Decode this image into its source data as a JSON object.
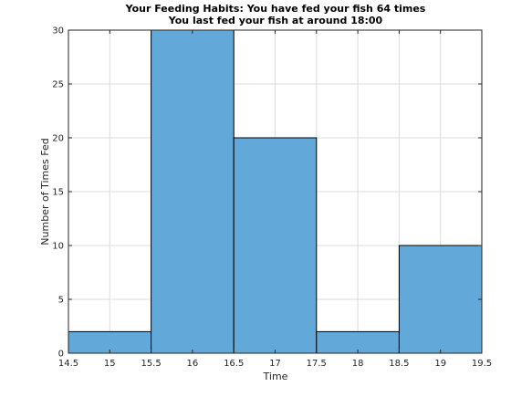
{
  "chart_data": {
    "type": "bar",
    "title": "Your Feeding Habits: You have fed your fish 64 times",
    "subtitle": "You last fed your fish at around 18:00",
    "xlabel": "Time",
    "ylabel": "Number of Times Fed",
    "xlim": [
      14.5,
      19.5
    ],
    "ylim": [
      0,
      30
    ],
    "grid": true,
    "bin_edges": [
      14.5,
      15.5,
      16.5,
      17.5,
      18.5,
      19.5
    ],
    "values": [
      2,
      30,
      20,
      2,
      10
    ],
    "x_ticks": [
      "14.5",
      "15",
      "15.5",
      "16",
      "16.5",
      "17",
      "17.5",
      "18",
      "18.5",
      "19",
      "19.5"
    ],
    "y_ticks": [
      "0",
      "5",
      "10",
      "15",
      "20",
      "25",
      "30"
    ],
    "colors": {
      "bar": "#62a9d9",
      "edge": "#000000"
    }
  }
}
